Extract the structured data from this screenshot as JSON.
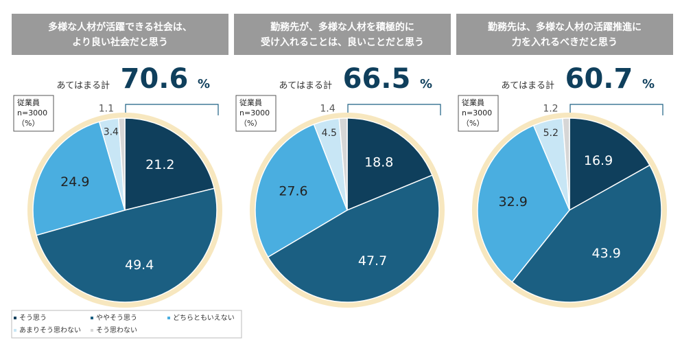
{
  "legend": {
    "labels": [
      "そう思う",
      "ややそう思う",
      "どちらともいえない",
      "あまりそう思わない",
      "そう思わない"
    ],
    "colors": [
      "#0f3f5c",
      "#1b5f82",
      "#4aaee0",
      "#c8e6f5",
      "#d6d6d6"
    ]
  },
  "note": [
    "従業員",
    "n=3000",
    "（%）"
  ],
  "chart_data": [
    {
      "type": "pie",
      "title": [
        "多様な人材が活躍できる社会は、",
        "より良い社会だと思う"
      ],
      "total_label": "あてはまる計",
      "total": 70.6,
      "total_unit": "%",
      "values": [
        21.2,
        49.4,
        24.9,
        3.4,
        1.1
      ]
    },
    {
      "type": "pie",
      "title": [
        "勤務先が、多様な人材を積極的に",
        "受け入れることは、良いことだと思う"
      ],
      "total_label": "あてはまる計",
      "total": 66.5,
      "total_unit": "%",
      "values": [
        18.8,
        47.7,
        27.6,
        4.5,
        1.4
      ]
    },
    {
      "type": "pie",
      "title": [
        "勤務先は、多様な人材の活躍推進に",
        "力を入れるべきだと思う"
      ],
      "total_label": "あてはまる計",
      "total": 60.7,
      "total_unit": "%",
      "values": [
        16.9,
        43.9,
        32.9,
        5.2,
        1.2
      ]
    }
  ]
}
